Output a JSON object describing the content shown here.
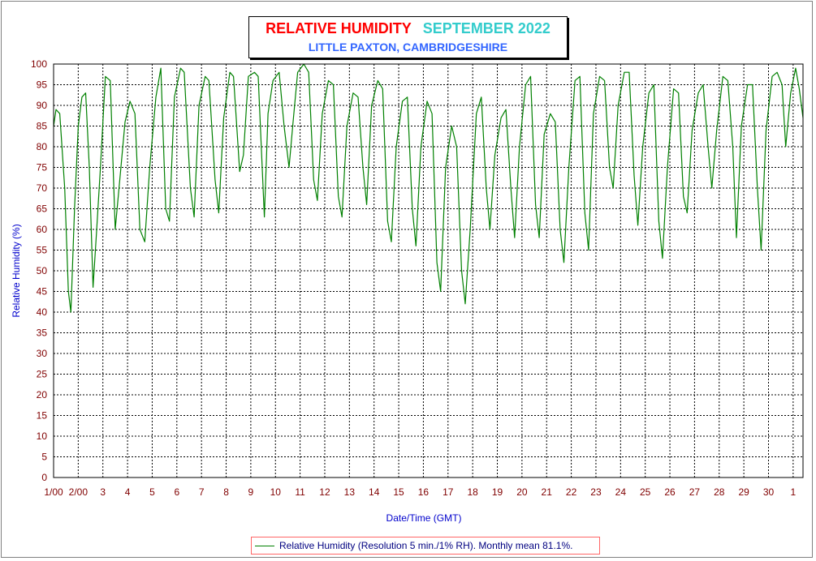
{
  "header": {
    "title": "RELATIVE HUMIDITY",
    "month": "SEPTEMBER 2022",
    "subtitle": "LITTLE PAXTON, CAMBRIDGESHIRE"
  },
  "legend": {
    "label": "Relative Humidity (Resolution 5 min./1% RH). Monthly mean 81.1%."
  },
  "colors": {
    "series": "#008000",
    "axis_text": "#800000",
    "axis_label": "#0000cc",
    "title": "#ff0000",
    "month": "#33cccc",
    "subtitle": "#3366ff"
  },
  "chart_data": {
    "type": "line",
    "title": "RELATIVE HUMIDITY",
    "xlabel": "Date/Time (GMT)",
    "ylabel": "Relative Humidity (%)",
    "ylim": [
      0,
      100
    ],
    "xlim": [
      1,
      31.4
    ],
    "x_tick_labels": [
      "1/00",
      "2/00",
      "3",
      "4",
      "5",
      "6",
      "7",
      "8",
      "9",
      "10",
      "11",
      "12",
      "13",
      "14",
      "15",
      "16",
      "17",
      "18",
      "19",
      "20",
      "21",
      "22",
      "23",
      "24",
      "25",
      "26",
      "27",
      "28",
      "29",
      "30",
      "1"
    ],
    "y_ticks": [
      0,
      5,
      10,
      15,
      20,
      25,
      30,
      35,
      40,
      45,
      50,
      55,
      60,
      65,
      70,
      75,
      80,
      85,
      90,
      95,
      100
    ],
    "grid": true,
    "legend_position": "bottom",
    "series": [
      {
        "name": "Relative Humidity (Resolution 5 min./1% RH). Monthly mean 81.1%.",
        "x": [
          1.0,
          1.1,
          1.25,
          1.45,
          1.6,
          1.7,
          1.85,
          2.0,
          2.15,
          2.3,
          2.45,
          2.6,
          2.75,
          2.9,
          3.1,
          3.3,
          3.5,
          3.7,
          3.9,
          4.1,
          4.3,
          4.5,
          4.7,
          4.9,
          5.15,
          5.35,
          5.55,
          5.7,
          5.9,
          6.15,
          6.3,
          6.55,
          6.7,
          6.9,
          7.15,
          7.3,
          7.55,
          7.7,
          7.9,
          8.15,
          8.3,
          8.55,
          8.7,
          8.9,
          9.15,
          9.3,
          9.55,
          9.7,
          9.9,
          10.15,
          10.35,
          10.55,
          10.7,
          10.9,
          11.15,
          11.35,
          11.55,
          11.7,
          11.9,
          12.15,
          12.35,
          12.55,
          12.7,
          12.9,
          13.15,
          13.35,
          13.55,
          13.7,
          13.9,
          14.15,
          14.35,
          14.55,
          14.7,
          14.9,
          15.15,
          15.35,
          15.55,
          15.7,
          15.9,
          16.15,
          16.35,
          16.55,
          16.7,
          16.9,
          17.15,
          17.35,
          17.55,
          17.7,
          17.9,
          18.15,
          18.35,
          18.55,
          18.7,
          18.9,
          19.15,
          19.35,
          19.55,
          19.7,
          19.9,
          20.15,
          20.35,
          20.55,
          20.7,
          20.9,
          21.15,
          21.35,
          21.55,
          21.7,
          21.9,
          22.15,
          22.35,
          22.55,
          22.7,
          22.9,
          23.15,
          23.35,
          23.55,
          23.7,
          23.9,
          24.15,
          24.35,
          24.55,
          24.7,
          24.9,
          25.15,
          25.35,
          25.55,
          25.7,
          25.9,
          26.15,
          26.35,
          26.55,
          26.7,
          26.9,
          27.15,
          27.35,
          27.55,
          27.7,
          27.9,
          28.15,
          28.35,
          28.55,
          28.7,
          28.9,
          29.15,
          29.35,
          29.55,
          29.7,
          29.9,
          30.15,
          30.35,
          30.55,
          30.7,
          30.9,
          31.1,
          31.25,
          31.4
        ],
        "y": [
          85,
          89,
          88,
          70,
          45,
          40,
          65,
          85,
          92,
          93,
          75,
          46,
          60,
          75,
          97,
          96,
          60,
          73,
          86,
          91,
          88,
          60,
          57,
          75,
          92,
          99,
          65,
          62,
          92,
          99,
          98,
          70,
          63,
          90,
          97,
          96,
          72,
          64,
          87,
          98,
          97,
          74,
          78,
          97,
          98,
          97,
          63,
          88,
          96,
          98,
          85,
          75,
          85,
          98,
          100,
          98,
          72,
          67,
          88,
          96,
          95,
          68,
          63,
          85,
          93,
          92,
          75,
          66,
          90,
          96,
          94,
          62,
          57,
          80,
          91,
          92,
          65,
          56,
          80,
          91,
          88,
          52,
          45,
          75,
          85,
          80,
          50,
          42,
          60,
          88,
          92,
          70,
          60,
          78,
          87,
          89,
          70,
          58,
          80,
          95,
          97,
          66,
          58,
          83,
          88,
          86,
          60,
          52,
          75,
          96,
          97,
          64,
          55,
          88,
          97,
          96,
          75,
          70,
          90,
          98,
          98,
          73,
          61,
          80,
          93,
          95,
          62,
          53,
          75,
          94,
          93,
          68,
          64,
          84,
          93,
          95,
          80,
          70,
          84,
          97,
          96,
          80,
          58,
          85,
          95,
          95,
          70,
          55,
          84,
          97,
          98,
          95,
          80,
          93,
          99,
          94,
          87
        ]
      }
    ]
  }
}
